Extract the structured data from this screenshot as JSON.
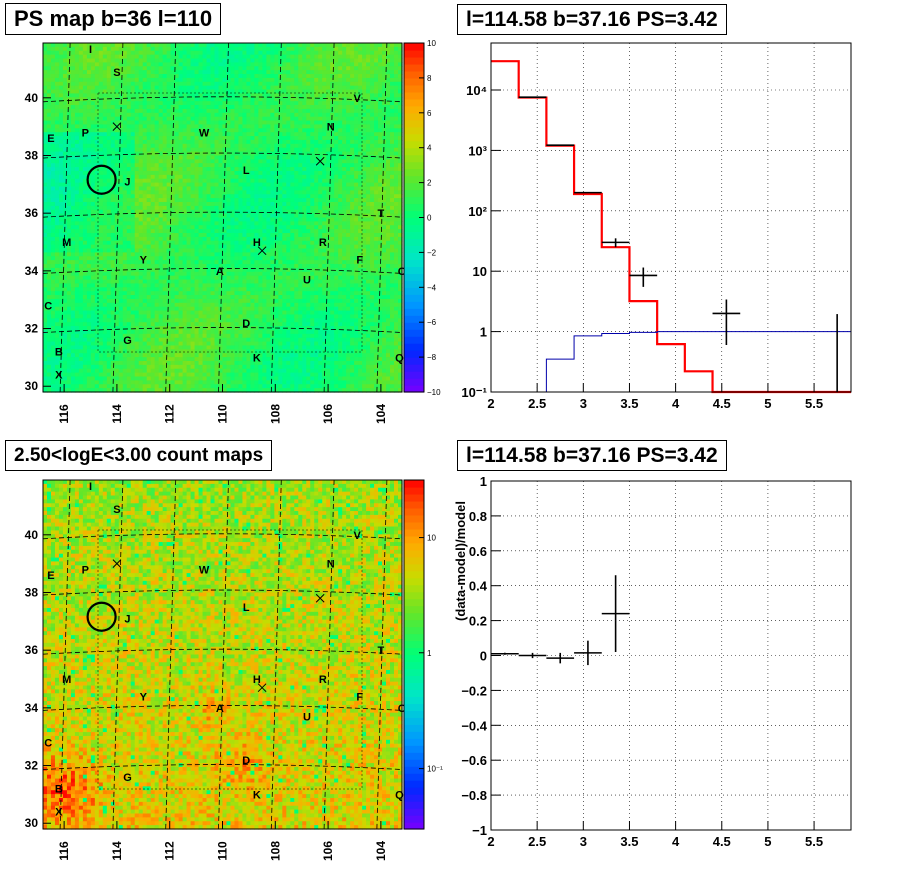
{
  "titles": {
    "map_top": "PS map b=36 l=110",
    "spec_top": "l=114.58 b=37.16 PS=3.42",
    "map_bottom": "2.50<logE<3.00 count maps",
    "spec_bottom": "l=114.58 b=37.16 PS=3.42"
  },
  "map_axes": {
    "x_ticks": [
      "116",
      "114",
      "112",
      "110",
      "108",
      "106",
      "104"
    ],
    "y_ticks": [
      "30",
      "32",
      "34",
      "36",
      "38",
      "40"
    ],
    "x_range": [
      116.8,
      103.2
    ],
    "y_range": [
      29.8,
      41.9
    ]
  },
  "map_labels": [
    {
      "t": "I",
      "l": 115.0,
      "b": 41.7
    },
    {
      "t": "S",
      "l": 114.0,
      "b": 40.9
    },
    {
      "t": "V",
      "l": 104.9,
      "b": 40.0
    },
    {
      "t": "N",
      "l": 105.9,
      "b": 39.0
    },
    {
      "t": "E",
      "l": 116.5,
      "b": 38.6
    },
    {
      "t": "P",
      "l": 115.2,
      "b": 38.8
    },
    {
      "t": "W",
      "l": 110.7,
      "b": 38.8
    },
    {
      "t": "L",
      "l": 109.1,
      "b": 37.5
    },
    {
      "t": "J",
      "l": 113.6,
      "b": 37.1
    },
    {
      "t": "T",
      "l": 104.0,
      "b": 36.0
    },
    {
      "t": "M",
      "l": 115.9,
      "b": 35.0
    },
    {
      "t": "H",
      "l": 108.7,
      "b": 35.0
    },
    {
      "t": "R",
      "l": 106.2,
      "b": 35.0
    },
    {
      "t": "Y",
      "l": 113.0,
      "b": 34.4
    },
    {
      "t": "F",
      "l": 104.8,
      "b": 34.4
    },
    {
      "t": "U",
      "l": 106.8,
      "b": 33.7
    },
    {
      "t": "A",
      "l": 110.1,
      "b": 34.0
    },
    {
      "t": "O",
      "l": 103.2,
      "b": 34.0
    },
    {
      "t": "C",
      "l": 116.6,
      "b": 32.8
    },
    {
      "t": "D",
      "l": 109.1,
      "b": 32.2
    },
    {
      "t": "G",
      "l": 113.6,
      "b": 31.6
    },
    {
      "t": "B",
      "l": 116.2,
      "b": 31.2
    },
    {
      "t": "K",
      "l": 108.7,
      "b": 31.0
    },
    {
      "t": "Q",
      "l": 103.3,
      "b": 31.0
    },
    {
      "t": "X",
      "l": 116.2,
      "b": 30.4
    }
  ],
  "map_markers": {
    "crosses": [
      [
        114.0,
        39.0
      ],
      [
        108.5,
        34.7
      ],
      [
        106.3,
        37.8
      ]
    ],
    "circle": {
      "l": 114.58,
      "b": 37.16
    }
  },
  "colorbar_top": {
    "ticks": [
      "10",
      "8",
      "6",
      "4",
      "2",
      "0",
      "−2",
      "−4",
      "−6",
      "−8",
      "−10"
    ]
  },
  "colorbar_bottom": {
    "ticks": [
      "10",
      "1",
      "10⁻¹"
    ]
  },
  "chart_data": [
    {
      "type": "heatmap",
      "title": "PS map b=36 l=110",
      "zrange": [
        -10,
        10
      ],
      "description_values": "smoothed significance map, mostly 0..+3"
    },
    {
      "type": "line",
      "title": "l=114.58 b=37.16 PS=3.42",
      "yscale": "log",
      "xlim": [
        2.0,
        5.9
      ],
      "ylim": [
        0.1,
        60000
      ],
      "x_ticks": [
        "2",
        "2.5",
        "3",
        "3.5",
        "4",
        "4.5",
        "5",
        "5.5"
      ],
      "y_ticks": [
        "10⁻¹",
        "1",
        "10",
        "10²",
        "10³",
        "10⁴"
      ],
      "series": [
        {
          "color": "#ff0000",
          "edges": [
            2.0,
            2.3,
            2.6,
            2.9,
            3.2,
            3.5,
            3.8,
            4.1,
            4.4,
            5.9
          ],
          "values": [
            30000,
            7500,
            1200,
            190,
            25,
            3.2,
            0.62,
            0.22,
            0.07
          ]
        },
        {
          "color": "#0000aa",
          "edges": [
            2.0,
            2.3,
            2.6,
            2.9,
            3.2,
            3.5,
            3.8,
            5.9
          ],
          "values": [
            0.03,
            0.1,
            0.35,
            0.85,
            0.93,
            0.97,
            1.0
          ]
        },
        {
          "color": "#000000",
          "points": [
            [
              2.45,
              7600,
              0.15,
              0
            ],
            [
              2.75,
              1220,
              0.15,
              0
            ],
            [
              3.05,
              200,
              0.15,
              0
            ],
            [
              3.35,
              30,
              0.15,
              5
            ],
            [
              3.65,
              8.5,
              0.15,
              3
            ],
            [
              4.55,
              2.0,
              0.15,
              1.4
            ],
            [
              5.75,
              1.0,
              0.0,
              0.95
            ]
          ]
        }
      ]
    },
    {
      "type": "heatmap",
      "title": "2.50<logE<3.00 count maps",
      "zscale": "log",
      "zrange": [
        0.03,
        30
      ]
    },
    {
      "type": "scatter",
      "title": "l=114.58 b=37.16 PS=3.42",
      "ylabel": "(data-model)/model",
      "xlim": [
        2.0,
        5.9
      ],
      "ylim": [
        -1,
        1
      ],
      "x_ticks": [
        "2",
        "2.5",
        "3",
        "3.5",
        "4",
        "4.5",
        "5",
        "5.5"
      ],
      "y_ticks": [
        "−1",
        "−0.8",
        "−0.6",
        "−0.4",
        "−0.2",
        "0",
        "0.2",
        "0.4",
        "0.6",
        "0.8",
        "1"
      ],
      "points": [
        [
          2.15,
          0.01,
          0.15,
          0.006
        ],
        [
          2.45,
          0.0,
          0.15,
          0.015
        ],
        [
          2.75,
          -0.015,
          0.15,
          0.03
        ],
        [
          3.05,
          0.015,
          0.15,
          0.07
        ],
        [
          3.35,
          0.24,
          0.15,
          0.22
        ]
      ]
    }
  ]
}
